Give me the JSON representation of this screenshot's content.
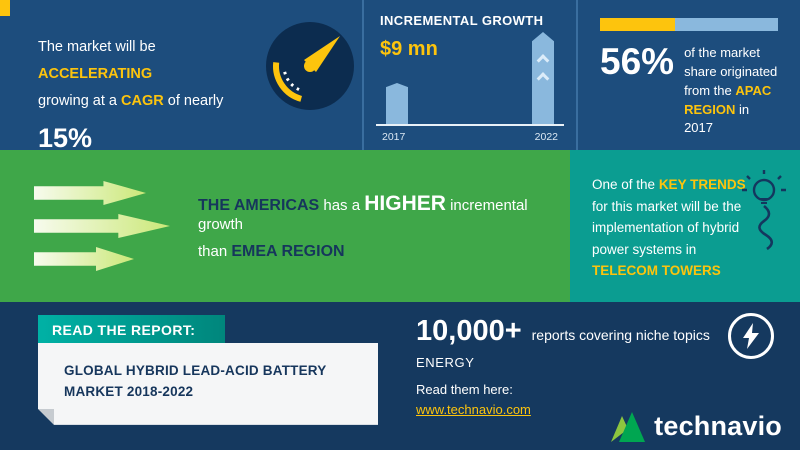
{
  "colors": {
    "top_blue": "#1d4d7d",
    "yellow": "#fdc40d",
    "green_band": "#3fa749",
    "teal_box": "#0b9d91",
    "bottom_navy": "#15395f",
    "light_blue_bar": "#8ab8dd",
    "ribbon_teal": "#00b1a5",
    "navy_text": "#16365c"
  },
  "top": {
    "accelerating": {
      "line1_pre": "The market will be",
      "line1_highlight": "ACCELERATING",
      "line2_pre": "growing at a",
      "line2_highlight": "CAGR",
      "line2_mid": "of nearly",
      "value": "15%"
    },
    "incremental": {
      "title": "INCREMENTAL GROWTH",
      "value": "$9 mn",
      "years": [
        "2017",
        "2022"
      ]
    },
    "apac": {
      "value": "56%",
      "text_pre": "of the market share originated from the",
      "highlight": "APAC REGION",
      "text_post": "in 2017"
    }
  },
  "middle": {
    "americas": {
      "region1": "THE AMERICAS",
      "mid1": "has a",
      "emph": "HIGHER",
      "mid2": "incremental growth",
      "mid3": "than",
      "region2": "EMEA REGION"
    },
    "key_trends": {
      "pre": "One of the",
      "highlight1": "KEY TRENDS",
      "mid": "for this market will be the implementation of hybrid power systems in",
      "highlight2": "TELECOM TOWERS"
    }
  },
  "bottom": {
    "ribbon": "READ THE REPORT:",
    "report_title": "GLOBAL HYBRID LEAD-ACID BATTERY MARKET 2018-2022",
    "stats": {
      "count": "10,000+",
      "desc": "reports covering niche topics",
      "category": "ENERGY",
      "cta": "Read them here:",
      "link": "www.technavio.com"
    },
    "brand": "technavio"
  },
  "chart_data": {
    "type": "bar",
    "title": "INCREMENTAL GROWTH",
    "categories": [
      "2017",
      "2022"
    ],
    "values_relative_pct": [
      45,
      100
    ],
    "annotation": "$9 mn",
    "note": "Incremental growth of $9 mn between 2017 and 2022; no numeric axis shown, bar heights are relative",
    "xlabel": "",
    "ylabel": "",
    "legend": false,
    "grid": false
  }
}
